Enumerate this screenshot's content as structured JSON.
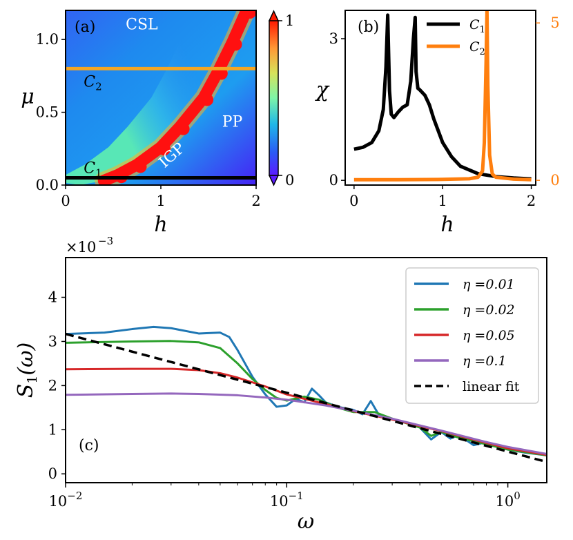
{
  "chart_data": [
    {
      "panel": "(a)",
      "type": "heatmap",
      "xlabel": "h",
      "ylabel": "μ",
      "xlim": [
        0,
        2
      ],
      "ylim": [
        0,
        1.2
      ],
      "xticks": [
        "0",
        "1",
        "2"
      ],
      "yticks": [
        "0.0",
        "0.5",
        "1.0"
      ],
      "colorbar": {
        "min_label": "0",
        "max_label": "1",
        "range": [
          0,
          1
        ],
        "colormap": "rainbow"
      },
      "region_labels": [
        {
          "text": "CSL",
          "h": 0.8,
          "mu": 1.07
        },
        {
          "text": "PP",
          "h": 1.75,
          "mu": 0.4
        },
        {
          "text": "IGP",
          "h": 1.15,
          "mu": 0.18,
          "rotate": -42
        }
      ],
      "ridge": [
        {
          "h": 0.4,
          "mu": 0.03
        },
        {
          "h": 0.55,
          "mu": 0.07
        },
        {
          "h": 0.75,
          "mu": 0.14
        },
        {
          "h": 1.0,
          "mu": 0.26
        },
        {
          "h": 1.2,
          "mu": 0.4
        },
        {
          "h": 1.45,
          "mu": 0.6
        },
        {
          "h": 1.6,
          "mu": 0.78
        },
        {
          "h": 1.75,
          "mu": 0.98
        },
        {
          "h": 1.9,
          "mu": 1.2
        }
      ],
      "cuts": [
        {
          "name": "C1",
          "label_main": "C",
          "label_sub": "1",
          "mu": 0.05,
          "color": "#000000"
        },
        {
          "name": "C2",
          "label_main": "C",
          "label_sub": "2",
          "mu": 0.8,
          "color": "#F5A623"
        }
      ]
    },
    {
      "panel": "(b)",
      "type": "line",
      "xlabel": "h",
      "ylabel": "χ",
      "xlim": [
        -0.1,
        2.05
      ],
      "ylim": [
        -0.1,
        3.6
      ],
      "ylim_right": [
        -0.15,
        5.4
      ],
      "xticks": [
        "0",
        "1",
        "2"
      ],
      "yticks_left": [
        "0",
        "3"
      ],
      "yticks_right": [
        "0",
        "5"
      ],
      "right_axis_color": "#FF7F0E",
      "series": [
        {
          "name": "C1",
          "label_main": "C",
          "label_sub": "1",
          "color": "#000000",
          "axis": "left",
          "x": [
            0,
            0.1,
            0.2,
            0.28,
            0.33,
            0.36,
            0.38,
            0.4,
            0.42,
            0.45,
            0.5,
            0.55,
            0.6,
            0.64,
            0.67,
            0.69,
            0.7,
            0.72,
            0.74,
            0.8,
            0.85,
            0.9,
            1.0,
            1.1,
            1.2,
            1.4,
            1.6,
            1.8,
            2.0
          ],
          "y": [
            0.66,
            0.7,
            0.8,
            1.05,
            1.5,
            2.4,
            3.5,
            1.9,
            1.4,
            1.33,
            1.45,
            1.55,
            1.6,
            2.1,
            3.0,
            3.45,
            2.3,
            1.95,
            1.92,
            1.8,
            1.6,
            1.3,
            0.8,
            0.5,
            0.3,
            0.14,
            0.08,
            0.05,
            0.03
          ]
        },
        {
          "name": "C2",
          "label_main": "C",
          "label_sub": "2",
          "color": "#FF7F0E",
          "axis": "right",
          "x": [
            0,
            0.5,
            1.0,
            1.3,
            1.4,
            1.45,
            1.47,
            1.49,
            1.5,
            1.51,
            1.53,
            1.56,
            1.6,
            1.8,
            2.0
          ],
          "y": [
            0.02,
            0.02,
            0.03,
            0.05,
            0.1,
            0.3,
            1.2,
            3.8,
            5.4,
            3.0,
            0.8,
            0.2,
            0.1,
            0.04,
            0.02
          ]
        }
      ]
    },
    {
      "panel": "(c)",
      "type": "line",
      "xscale": "log",
      "xlabel": "ω",
      "ylabel_main": "S",
      "ylabel_sub": "1",
      "ylabel_arg": "(ω)",
      "ylim": [
        -0.2,
        4.9
      ],
      "xlim": [
        0.01,
        1.5
      ],
      "y_multiplier_base": "×10",
      "y_multiplier_exp": "−3",
      "yticks": [
        "0",
        "1",
        "2",
        "3",
        "4"
      ],
      "xticks": [
        {
          "value": 0.01,
          "base": "10",
          "exp": "−2"
        },
        {
          "value": 0.1,
          "base": "10",
          "exp": "−1"
        },
        {
          "value": 1,
          "base": "10",
          "exp": "0"
        }
      ],
      "legend_placement": "upper-right",
      "series": [
        {
          "name": "η =0.01",
          "color": "#1F77B4",
          "x": [
            0.01,
            0.015,
            0.02,
            0.025,
            0.03,
            0.04,
            0.05,
            0.055,
            0.06,
            0.07,
            0.08,
            0.09,
            0.1,
            0.11,
            0.12,
            0.13,
            0.14,
            0.15,
            0.17,
            0.2,
            0.22,
            0.24,
            0.26,
            0.3,
            0.35,
            0.4,
            0.45,
            0.5,
            0.55,
            0.6,
            0.7,
            0.8,
            1.0,
            1.2,
            1.5
          ],
          "y": [
            3.17,
            3.2,
            3.28,
            3.33,
            3.3,
            3.18,
            3.2,
            3.1,
            2.8,
            2.2,
            1.8,
            1.52,
            1.55,
            1.7,
            1.62,
            1.93,
            1.78,
            1.62,
            1.52,
            1.45,
            1.35,
            1.65,
            1.35,
            1.25,
            1.15,
            1.05,
            0.78,
            0.95,
            0.8,
            0.88,
            0.65,
            0.72,
            0.55,
            0.48,
            0.42
          ]
        },
        {
          "name": "η =0.02",
          "color": "#2CA02C",
          "x": [
            0.01,
            0.02,
            0.03,
            0.04,
            0.05,
            0.06,
            0.07,
            0.08,
            0.09,
            0.1,
            0.12,
            0.14,
            0.17,
            0.2,
            0.25,
            0.3,
            0.4,
            0.45,
            0.5,
            0.6,
            0.8,
            1.0,
            1.5
          ],
          "y": [
            2.97,
            3.0,
            3.01,
            2.98,
            2.85,
            2.5,
            2.15,
            1.9,
            1.72,
            1.66,
            1.75,
            1.68,
            1.5,
            1.4,
            1.4,
            1.25,
            1.05,
            0.86,
            0.95,
            0.82,
            0.67,
            0.55,
            0.42
          ]
        },
        {
          "name": "η =0.05",
          "color": "#D62728",
          "x": [
            0.01,
            0.02,
            0.03,
            0.04,
            0.05,
            0.06,
            0.08,
            0.1,
            0.15,
            0.2,
            0.3,
            0.5,
            0.8,
            1.0,
            1.5
          ],
          "y": [
            2.37,
            2.38,
            2.38,
            2.35,
            2.28,
            2.18,
            1.98,
            1.8,
            1.58,
            1.42,
            1.23,
            0.97,
            0.7,
            0.58,
            0.43
          ]
        },
        {
          "name": "η =0.1",
          "color": "#9467BD",
          "x": [
            0.01,
            0.02,
            0.03,
            0.04,
            0.06,
            0.08,
            0.1,
            0.15,
            0.2,
            0.3,
            0.5,
            0.8,
            1.0,
            1.5
          ],
          "y": [
            1.79,
            1.81,
            1.82,
            1.81,
            1.78,
            1.73,
            1.68,
            1.55,
            1.43,
            1.25,
            0.98,
            0.72,
            0.61,
            0.45
          ]
        },
        {
          "name": "linear fit",
          "color": "#000000",
          "dashed": true,
          "x": [
            0.01,
            1.5
          ],
          "y": [
            3.17,
            0.27
          ]
        }
      ]
    }
  ]
}
